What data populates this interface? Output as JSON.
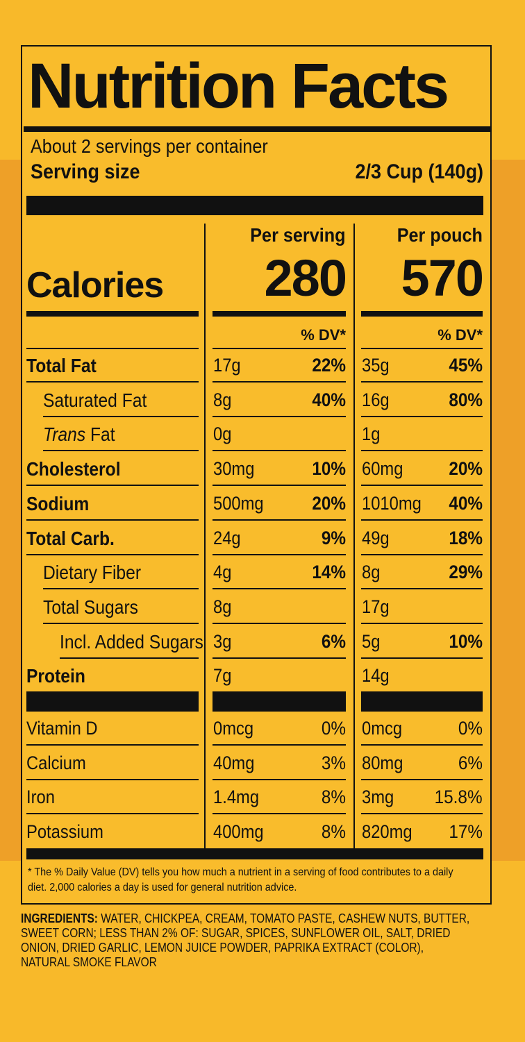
{
  "title": "Nutrition Facts",
  "servings": "About 2 servings per container",
  "serving_size_label": "Serving size",
  "serving_size": "2/3 Cup (140g)",
  "calories_label": "Calories",
  "columns": [
    {
      "heading": "Per serving",
      "calories": "280",
      "dv_header": "% DV*"
    },
    {
      "heading": "Per pouch",
      "calories": "570",
      "dv_header": "% DV*"
    }
  ],
  "nutrients": [
    {
      "name": "Total Fat",
      "bold": true,
      "indent": 0,
      "serving": [
        "17g",
        "22%"
      ],
      "pouch": [
        "35g",
        "45%"
      ]
    },
    {
      "name": "Saturated Fat",
      "bold": false,
      "indent": 1,
      "serving": [
        "8g",
        "40%"
      ],
      "pouch": [
        "16g",
        "80%"
      ]
    },
    {
      "prefix": "Trans",
      "name": "Fat",
      "bold": false,
      "indent": 1,
      "serving": [
        "0g",
        null
      ],
      "pouch": [
        "1g",
        null
      ]
    },
    {
      "name": "Cholesterol",
      "bold": true,
      "indent": 0,
      "serving": [
        "30mg",
        "10%"
      ],
      "pouch": [
        "60mg",
        "20%"
      ]
    },
    {
      "name": "Sodium",
      "bold": true,
      "indent": 0,
      "serving": [
        "500mg",
        "20%"
      ],
      "pouch": [
        "1010mg",
        "40%"
      ]
    },
    {
      "name": "Total Carb.",
      "bold": true,
      "indent": 0,
      "serving": [
        "24g",
        "9%"
      ],
      "pouch": [
        "49g",
        "18%"
      ]
    },
    {
      "name": "Dietary Fiber",
      "bold": false,
      "indent": 1,
      "serving": [
        "4g",
        "14%"
      ],
      "pouch": [
        "8g",
        "29%"
      ]
    },
    {
      "name": "Total Sugars",
      "bold": false,
      "indent": 1,
      "serving": [
        "8g",
        null
      ],
      "pouch": [
        "17g",
        null
      ]
    },
    {
      "name": "Incl. Added Sugars",
      "bold": false,
      "indent": 2,
      "serving": [
        "3g",
        "6%"
      ],
      "pouch": [
        "5g",
        "10%"
      ]
    },
    {
      "name": "Protein",
      "bold": true,
      "indent": 0,
      "serving": [
        "7g",
        null
      ],
      "pouch": [
        "14g",
        null
      ]
    }
  ],
  "vitamins": [
    {
      "name": "Vitamin D",
      "serving": [
        "0mcg",
        "0%"
      ],
      "pouch": [
        "0mcg",
        "0%"
      ]
    },
    {
      "name": "Calcium",
      "serving": [
        "40mg",
        "3%"
      ],
      "pouch": [
        "80mg",
        "6%"
      ]
    },
    {
      "name": "Iron",
      "serving": [
        "1.4mg",
        "8%"
      ],
      "pouch": [
        "3mg",
        "15.8%"
      ]
    },
    {
      "name": "Potassium",
      "serving": [
        "400mg",
        "8%"
      ],
      "pouch": [
        "820mg",
        "17%"
      ]
    }
  ],
  "footnote": "* The % Daily Value (DV) tells you how much a nutrient in a serving of food contributes to a daily diet. 2,000 calories a day is used for general nutrition advice.",
  "ingredients_label": "INGREDIENTS:",
  "ingredients": "WATER, CHICKPEA, CREAM, TOMATO PASTE, CASHEW NUTS, BUTTER, SWEET CORN; LESS THAN 2% OF: SUGAR, SPICES, SUNFLOWER OIL, SALT, DRIED ONION, DRIED GARLIC, LEMON JUICE POWDER, PAPRIKA EXTRACT (COLOR), NATURAL SMOKE FLAVOR"
}
